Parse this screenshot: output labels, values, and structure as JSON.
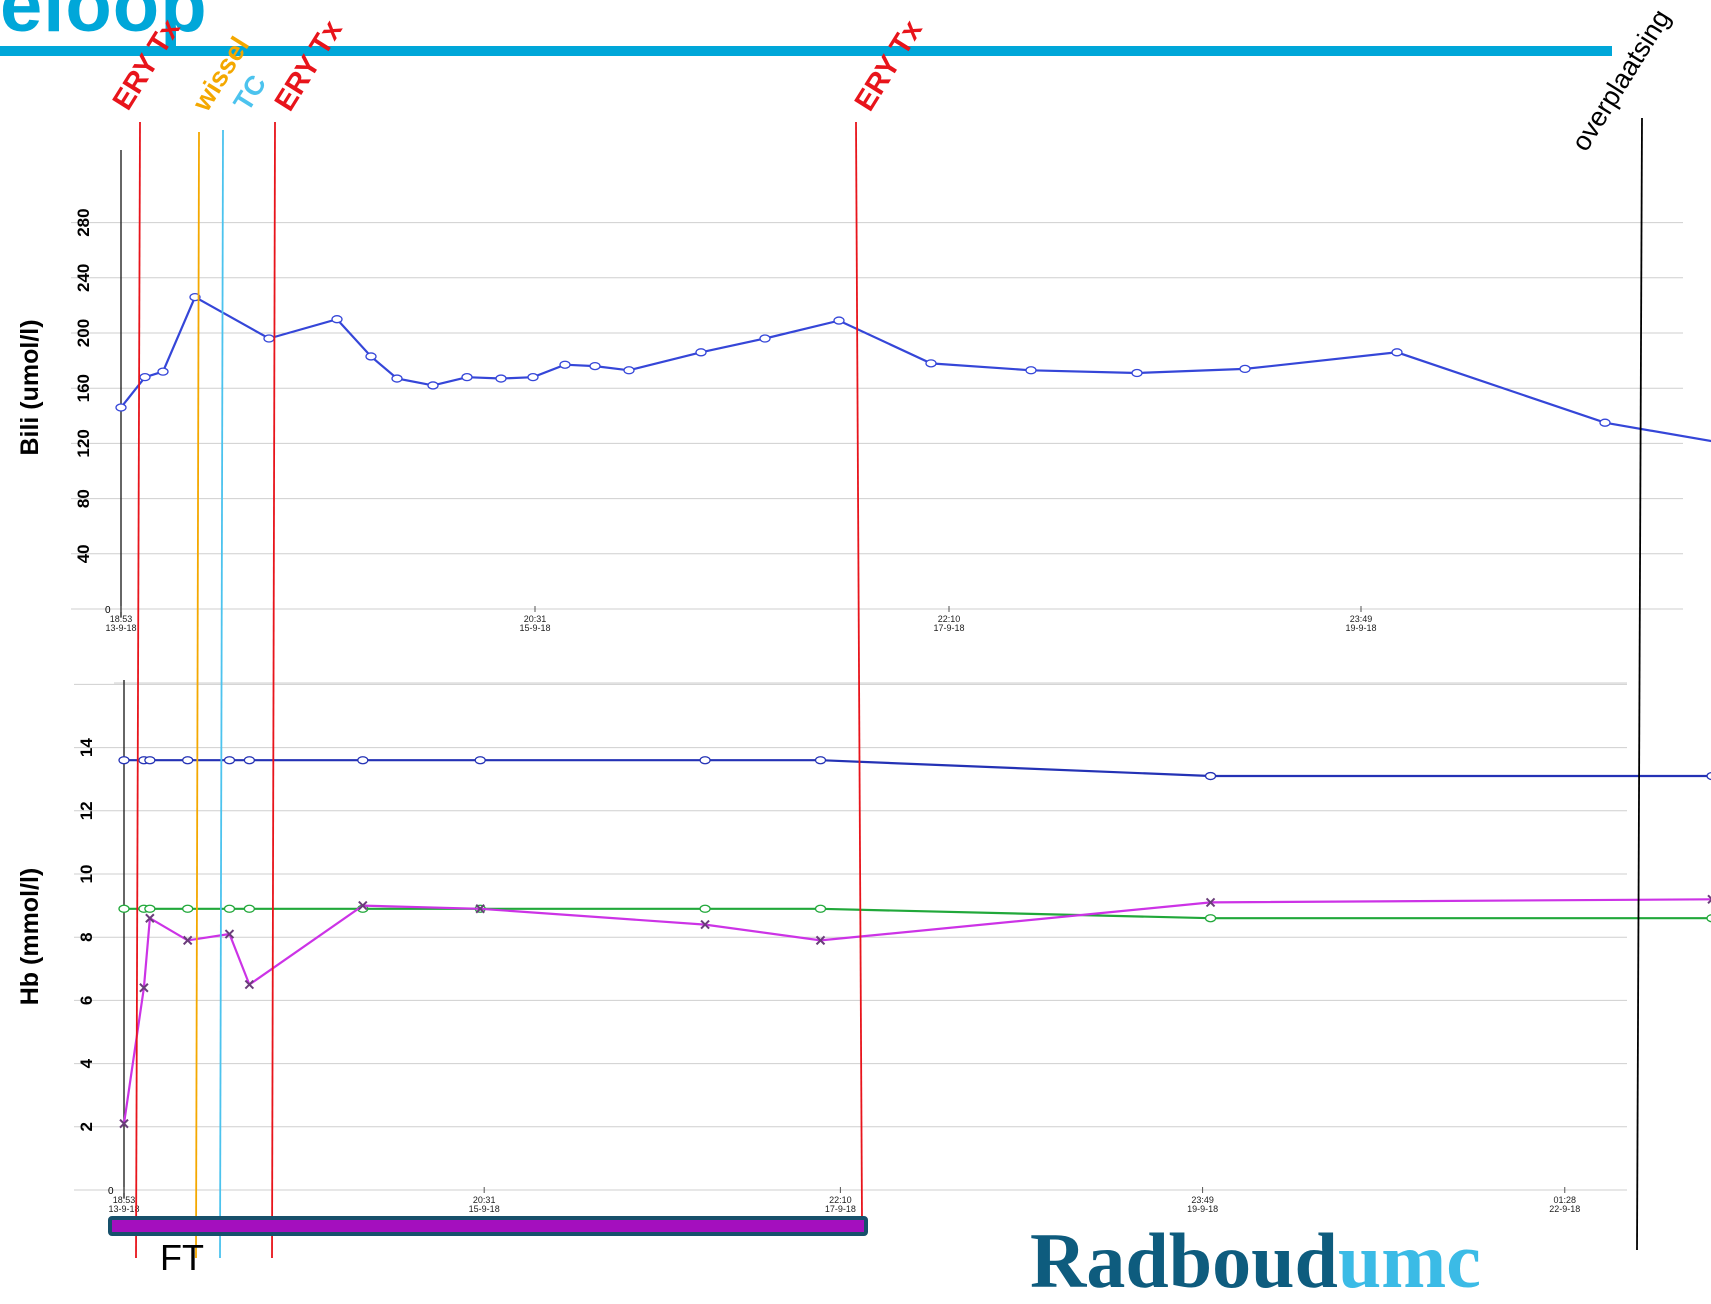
{
  "header": {
    "title": "eloop"
  },
  "brand": {
    "part1": "Radboud",
    "part2": "umc"
  },
  "colors": {
    "title": "#00a7d9",
    "tx": "#e8141b",
    "wissel": "#f4a800",
    "tc": "#4cc3ee",
    "bili_line": "#3546d8",
    "hb_blue": "#2432b5",
    "hb_green": "#21a83a",
    "hb_magenta": "#cc33e6",
    "ft_bar": "#a40fbe",
    "ft_bar_border": "#17506b"
  },
  "chart_data": [
    {
      "type": "line",
      "ylabel": "Bili (umol/l)",
      "ylim": [
        0,
        280
      ],
      "yticks": [
        0,
        40,
        80,
        120,
        160,
        200,
        240,
        280
      ],
      "grid": true,
      "xlim": [
        0,
        9.85
      ],
      "xticks": [
        {
          "x": 0,
          "time": "18:53",
          "date": "13-9-18"
        },
        {
          "x": 2.07,
          "time": "20:31",
          "date": "15-9-18"
        },
        {
          "x": 4.14,
          "time": "22:10",
          "date": "17-9-18"
        },
        {
          "x": 6.2,
          "time": "23:49",
          "date": "19-9-18"
        }
      ],
      "series": [
        {
          "marker": "circle",
          "points": [
            [
              0,
              146
            ],
            [
              0.12,
              168
            ],
            [
              0.21,
              172
            ],
            [
              0.37,
              226
            ],
            [
              0.74,
              196
            ],
            [
              1.08,
              210
            ],
            [
              1.25,
              183
            ],
            [
              1.38,
              167
            ],
            [
              1.56,
              162
            ],
            [
              1.73,
              168
            ],
            [
              1.9,
              167
            ],
            [
              2.06,
              168
            ],
            [
              2.22,
              177
            ],
            [
              2.37,
              176
            ],
            [
              2.54,
              173
            ],
            [
              2.9,
              186
            ],
            [
              3.22,
              196
            ],
            [
              3.59,
              209
            ],
            [
              4.05,
              178
            ],
            [
              4.55,
              173
            ],
            [
              5.08,
              171
            ],
            [
              5.62,
              174
            ],
            [
              6.38,
              186
            ],
            [
              7.42,
              135
            ],
            [
              8.1,
              118
            ]
          ]
        }
      ]
    },
    {
      "type": "line",
      "ylabel": "Hb (mmol/l)",
      "ylim": [
        0,
        16
      ],
      "yticks": [
        0,
        2,
        4,
        6,
        8,
        10,
        12,
        14
      ],
      "grid": true,
      "xlim": [
        0,
        8.05
      ],
      "xticks": [
        {
          "x": 0,
          "time": "18:53",
          "date": "13-9-18"
        },
        {
          "x": 1.81,
          "time": "20:31",
          "date": "15-9-18"
        },
        {
          "x": 3.6,
          "time": "22:10",
          "date": "17-9-18"
        },
        {
          "x": 5.42,
          "time": "23:49",
          "date": "19-9-18"
        },
        {
          "x": 7.24,
          "time": "01:28",
          "date": "22-9-18"
        }
      ],
      "series": [
        {
          "color": "hb_blue",
          "marker": "circle",
          "points": [
            [
              0,
              13.6
            ],
            [
              0.1,
              13.6
            ],
            [
              0.13,
              13.6
            ],
            [
              0.32,
              13.6
            ],
            [
              0.53,
              13.6
            ],
            [
              0.63,
              13.6
            ],
            [
              1.2,
              13.6
            ],
            [
              1.79,
              13.6
            ],
            [
              2.92,
              13.6
            ],
            [
              3.5,
              13.6
            ],
            [
              5.46,
              13.1
            ],
            [
              7.98,
              13.1
            ]
          ]
        },
        {
          "color": "hb_green",
          "marker": "circle",
          "points": [
            [
              0,
              8.9
            ],
            [
              0.1,
              8.9
            ],
            [
              0.13,
              8.9
            ],
            [
              0.32,
              8.9
            ],
            [
              0.53,
              8.9
            ],
            [
              0.63,
              8.9
            ],
            [
              1.2,
              8.9
            ],
            [
              1.79,
              8.9
            ],
            [
              2.92,
              8.9
            ],
            [
              3.5,
              8.9
            ],
            [
              5.46,
              8.6
            ],
            [
              7.98,
              8.6
            ]
          ]
        },
        {
          "color": "hb_magenta",
          "marker": "cross",
          "points": [
            [
              0,
              2.1
            ],
            [
              0.1,
              6.4
            ],
            [
              0.13,
              8.6
            ],
            [
              0.32,
              7.9
            ],
            [
              0.53,
              8.1
            ],
            [
              0.63,
              6.5
            ],
            [
              1.2,
              9.0
            ],
            [
              1.79,
              8.9
            ],
            [
              2.92,
              8.4
            ],
            [
              3.5,
              7.9
            ],
            [
              5.46,
              9.1
            ],
            [
              7.98,
              9.2
            ]
          ]
        }
      ]
    }
  ],
  "events": [
    {
      "label": "ERY Tx",
      "color": "tx"
    },
    {
      "label": "wissel",
      "color": "wissel"
    },
    {
      "label": "TC",
      "color": "tc"
    },
    {
      "label": "ERY Tx",
      "color": "tx"
    },
    {
      "label": "ERY Tx",
      "color": "tx"
    },
    {
      "label": "overplaatsing",
      "color": "black"
    }
  ],
  "ft": {
    "label": "FT"
  }
}
